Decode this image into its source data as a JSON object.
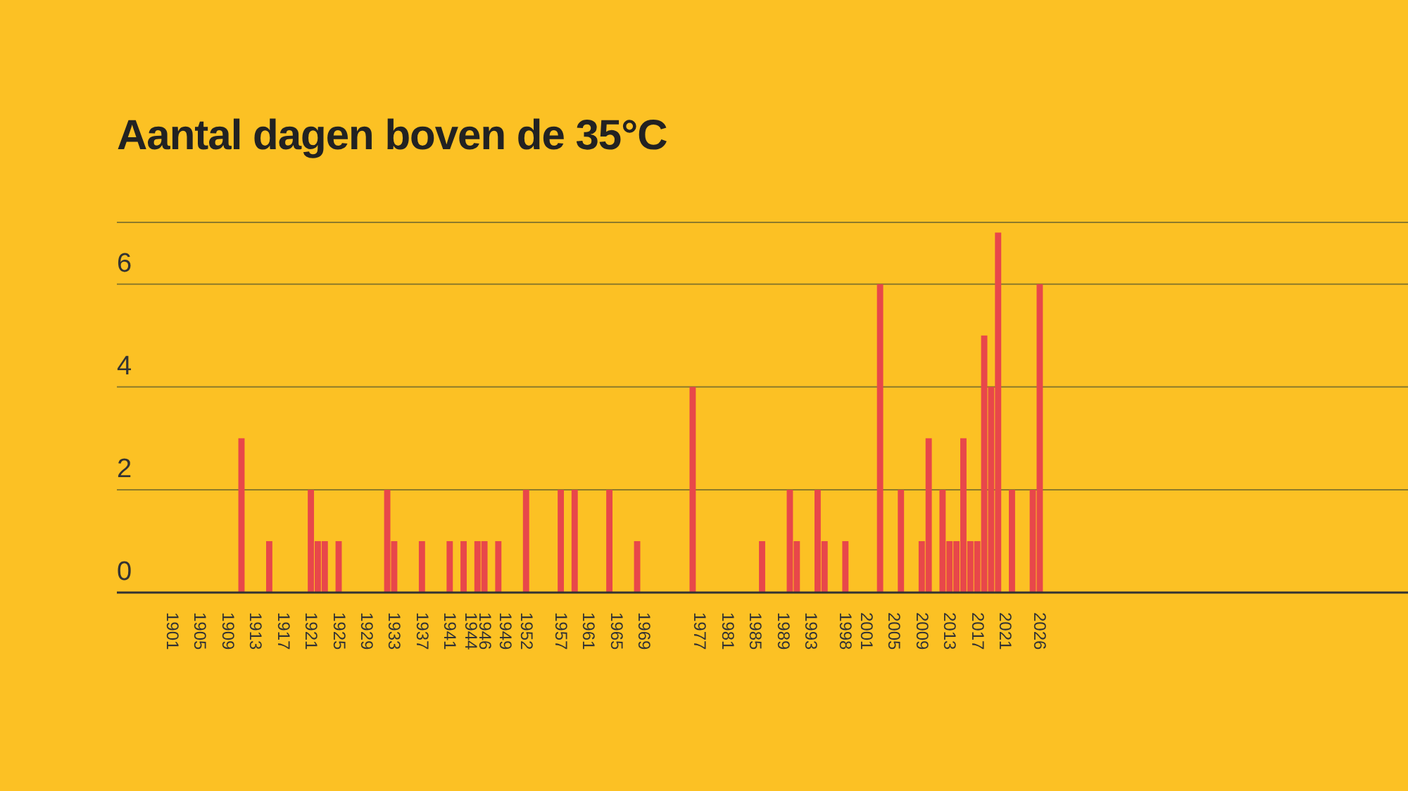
{
  "chart_data": {
    "type": "bar",
    "title": "Aantal dagen boven de 35°C",
    "x": [
      1911,
      1915,
      1921,
      1922,
      1923,
      1925,
      1932,
      1933,
      1937,
      1941,
      1943,
      1945,
      1946,
      1948,
      1952,
      1957,
      1959,
      1964,
      1968,
      1976,
      1986,
      1990,
      1991,
      1994,
      1995,
      1998,
      2003,
      2006,
      2009,
      2010,
      2012,
      2013,
      2014,
      2015,
      2016,
      2017,
      2018,
      2019,
      2020,
      2022,
      2025,
      2026
    ],
    "values": [
      3,
      1,
      2,
      1,
      1,
      1,
      2,
      1,
      1,
      1,
      1,
      1,
      1,
      1,
      2,
      2,
      2,
      2,
      1,
      4,
      1,
      2,
      1,
      2,
      1,
      1,
      6,
      2,
      1,
      3,
      2,
      1,
      1,
      3,
      1,
      1,
      5,
      4,
      7,
      2,
      2,
      6
    ],
    "color": "#e8474a",
    "xlim": [
      1893,
      2079
    ],
    "xticks": [
      1901,
      1905,
      1909,
      1913,
      1917,
      1921,
      1925,
      1929,
      1933,
      1937,
      1941,
      1944,
      1946,
      1949,
      1952,
      1957,
      1961,
      1965,
      1969,
      1977,
      1981,
      1985,
      1989,
      1993,
      1998,
      2001,
      2005,
      2009,
      2013,
      2017,
      2021,
      2026
    ],
    "ylim": [
      0,
      7.2
    ],
    "yticks": [
      0,
      2,
      4,
      6
    ],
    "grid": "y"
  }
}
